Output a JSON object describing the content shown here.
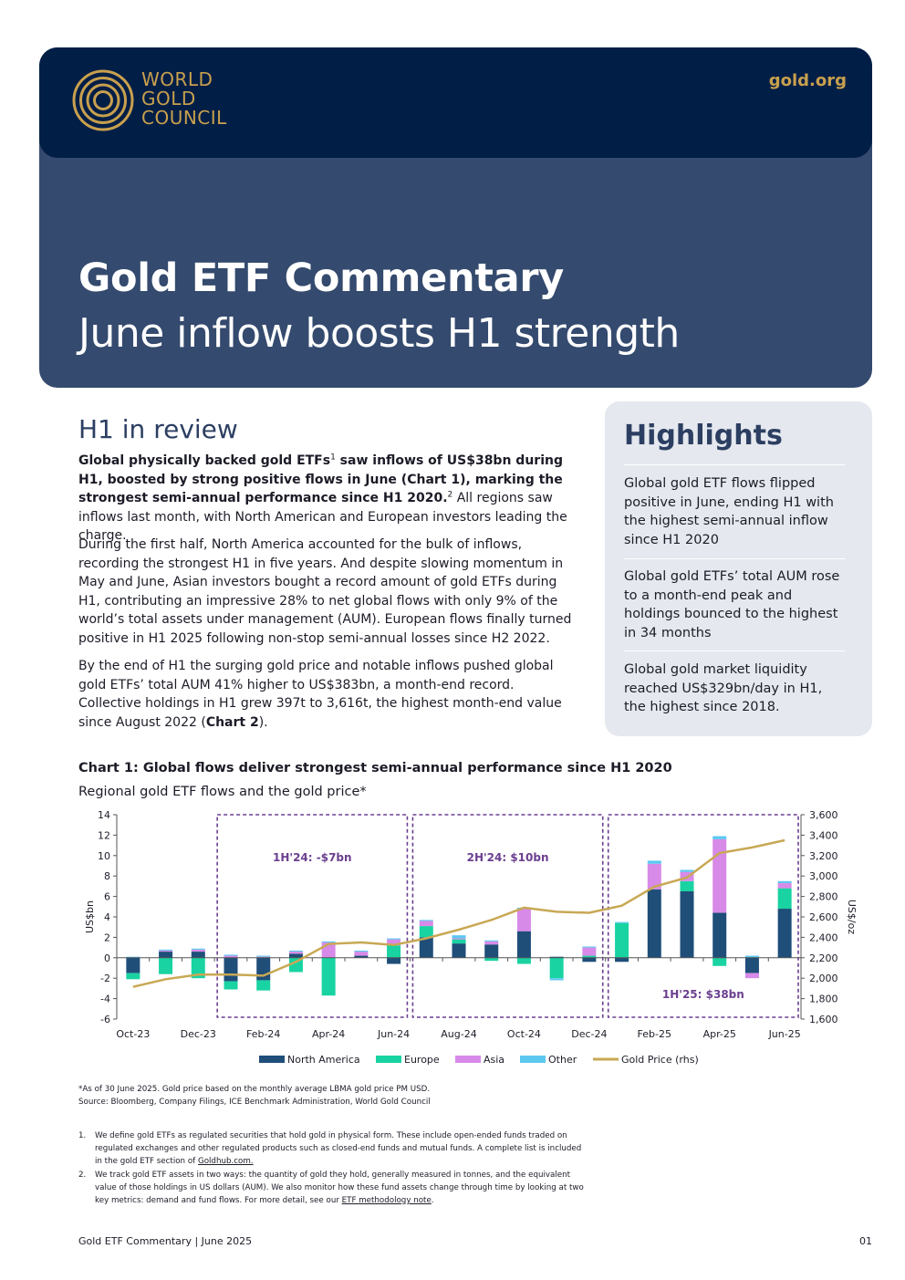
{
  "header": {
    "logo_lines": [
      "WORLD",
      "GOLD",
      "COUNCIL"
    ],
    "site": "gold.org",
    "title": "Gold ETF Commentary",
    "subtitle": "June inflow boosts H1 strength"
  },
  "colors": {
    "navy_dark": "#001e46",
    "navy": "#344a6e",
    "gold": "#c9a04e",
    "north_america": "#1f4e79",
    "europe": "#19d3a2",
    "asia": "#d88ae8",
    "other": "#5cc8f0",
    "gold_price": "#c8a854",
    "period_box": "#6b3f8f"
  },
  "review": {
    "heading": "H1 in review",
    "p1_bold_a": "Global physically backed gold ETFs",
    "p1_sup1": "1",
    "p1_bold_b": " saw inflows of US$38bn during H1, boosted by strong positive flows in June (Chart 1), marking the strongest semi-annual performance since H1 2020.",
    "p1_sup2": "2",
    "p1_rest": " All regions saw inflows last month, with North American and European investors leading the charge.",
    "p2": "During the first half, North America accounted for the bulk of inflows, recording the strongest H1 in five years. And despite slowing momentum in May and June, Asian investors bought a record amount of gold ETFs during H1, contributing an impressive 28% to net global flows with only 9% of the world’s total assets under management (AUM). European flows finally turned positive in H1 2025 following non-stop semi-annual losses since H2 2022.",
    "p3_a": "By the end of H1 the surging gold price and notable inflows pushed global gold ETFs’ total AUM 41% higher to US$383bn, a month-end record. Collective holdings in H1 grew 397t to 3,616t, the highest month-end value since August 2022 (",
    "p3_b": "Chart 2",
    "p3_c": ")."
  },
  "highlights": {
    "title": "Highlights",
    "items": [
      "Global gold ETF flows flipped positive in June, ending H1 with the highest semi-annual inflow since H1 2020",
      "Global gold ETFs’ total AUM rose to a month-end peak and holdings bounced to the highest in 34 months",
      "Global gold market liquidity reached US$329bn/day in H1, the highest since 2018."
    ]
  },
  "chart_data": {
    "type": "bar",
    "title": "Chart 1: Global flows deliver strongest semi-annual performance since H1 2020",
    "subtitle": "Regional gold ETF flows and the gold price*",
    "ylabel": "US$bn",
    "y2label": "US$/oz",
    "ylim": [
      -6,
      14
    ],
    "y2lim": [
      1600,
      3600
    ],
    "yticks": [
      14,
      12,
      10,
      8,
      6,
      4,
      2,
      0,
      -2,
      -4,
      -6
    ],
    "y2ticks": [
      "3,600",
      "3,400",
      "3,200",
      "3,000",
      "2,800",
      "2,600",
      "2,400",
      "2,200",
      "2,000",
      "1,800",
      "1,600"
    ],
    "categories": [
      "Oct-23",
      "Nov-23",
      "Dec-23",
      "Jan-24",
      "Feb-24",
      "Mar-24",
      "Apr-24",
      "May-24",
      "Jun-24",
      "Jul-24",
      "Aug-24",
      "Sep-24",
      "Oct-24",
      "Nov-24",
      "Dec-24",
      "Jan-25",
      "Feb-25",
      "Mar-25",
      "Apr-25",
      "May-25",
      "Jun-25"
    ],
    "xtick_labels": [
      "Oct-23",
      "Dec-23",
      "Feb-24",
      "Apr-24",
      "Jun-24",
      "Aug-24",
      "Oct-24",
      "Dec-24",
      "Feb-25",
      "Apr-25",
      "Jun-25"
    ],
    "series": [
      {
        "name": "North America",
        "values": [
          -1.5,
          0.6,
          0.6,
          -2.3,
          -2.2,
          0.4,
          0,
          0.2,
          -0.6,
          2.0,
          1.4,
          1.3,
          2.6,
          0.1,
          -0.4,
          -0.4,
          6.7,
          6.5,
          4.4,
          -1.5,
          4.8
        ]
      },
      {
        "name": "Europe",
        "values": [
          -0.6,
          -1.6,
          -2.0,
          -0.8,
          -1.0,
          -1.4,
          -3.7,
          0,
          1.2,
          1.1,
          0.4,
          -0.3,
          -0.6,
          -2.0,
          0.2,
          3.4,
          0,
          1.0,
          -0.8,
          0,
          2.0
        ]
      },
      {
        "name": "Asia",
        "values": [
          0,
          0.1,
          0.2,
          0.2,
          0.1,
          0.2,
          1.5,
          0.4,
          0.6,
          0.5,
          0.1,
          0.3,
          2.2,
          0,
          0.8,
          0,
          2.5,
          0.9,
          7.2,
          -0.5,
          0.5
        ]
      },
      {
        "name": "Other",
        "values": [
          0.1,
          0.1,
          0.1,
          0.1,
          0.1,
          0.1,
          0.1,
          0.1,
          0.1,
          0.1,
          0.3,
          0.1,
          0.1,
          -0.2,
          0.1,
          0.1,
          0.3,
          0.2,
          0.3,
          0.2,
          0.2
        ]
      }
    ],
    "line": {
      "name": "Gold Price (rhs)",
      "values": [
        1915,
        1990,
        2035,
        2035,
        2025,
        2160,
        2335,
        2350,
        2325,
        2390,
        2475,
        2570,
        2690,
        2650,
        2640,
        2710,
        2895,
        2985,
        3225,
        3280,
        3350
      ]
    },
    "periods": [
      {
        "label": "1H'24: -$7bn",
        "start": 3,
        "end": 8,
        "label_pos": "top"
      },
      {
        "label": "2H'24: $10bn",
        "start": 9,
        "end": 14,
        "label_pos": "top"
      },
      {
        "label": "1H'25: $38bn",
        "start": 15,
        "end": 20,
        "label_pos": "bottom"
      }
    ],
    "legend": "bottom",
    "grid": false
  },
  "chart_note": "*As of 30 June 2025. Gold price based on the monthly average LBMA gold price PM USD.",
  "chart_source": "Source: Bloomberg, Company Filings, ICE Benchmark Administration, World Gold Council",
  "footnotes": [
    {
      "num": "1.",
      "text": "We define gold ETFs as regulated securities that hold gold in physical form. These include open-ended funds traded on regulated exchanges and other regulated products such as closed-end funds and mutual funds. A complete list is included in the gold ETF section of ",
      "link": "Goldhub.com.",
      "tail": ""
    },
    {
      "num": "2.",
      "text": "We track gold ETF assets in two ways: the quantity of gold they hold, generally measured in tonnes, and the equivalent value of those holdings in US dollars (AUM). We also monitor how these fund assets change through time by looking at two key metrics: demand and fund flows. For more detail, see our ",
      "link": "ETF methodology note",
      "tail": "."
    }
  ],
  "footer": {
    "left": "Gold ETF Commentary | June 2025",
    "page": "01"
  }
}
